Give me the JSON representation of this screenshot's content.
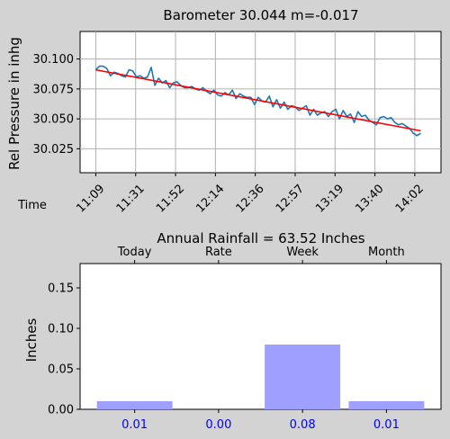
{
  "chart_data": [
    {
      "type": "line",
      "title": "Barometer 30.044 m=-0.017",
      "xlabel": "Time",
      "ylabel": "Rel Pressure in inhg",
      "ylim": [
        30.005,
        30.123
      ],
      "yticks": [
        30.025,
        30.05,
        30.075,
        30.1
      ],
      "ytick_labels": [
        "30.025",
        "30.050",
        "30.075",
        "30.100"
      ],
      "xtick_labels": [
        "11:09",
        "11:31",
        "11:52",
        "12:14",
        "12:36",
        "12:57",
        "13:19",
        "13:40",
        "14:02"
      ],
      "xtick_positions": [
        0,
        21.6,
        43.2,
        64.8,
        86.4,
        108,
        129.6,
        151.2,
        172.8
      ],
      "xlim": [
        -8.5,
        187
      ],
      "grid": true,
      "series": [
        {
          "color": "#1f77b4",
          "x": [
            0,
            2,
            4,
            6,
            8,
            10,
            12,
            14,
            16,
            18,
            20,
            22,
            24,
            26,
            28,
            30,
            32,
            34,
            36,
            38,
            40,
            42,
            44,
            46,
            48,
            50,
            52,
            54,
            56,
            58,
            60,
            62,
            64,
            66,
            68,
            70,
            72,
            74,
            76,
            78,
            80,
            82,
            84,
            86,
            88,
            90,
            92,
            94,
            96,
            98,
            100,
            102,
            104,
            106,
            108,
            110,
            112,
            114,
            116,
            118,
            120,
            122,
            124,
            126,
            128,
            130,
            132,
            134,
            136,
            138,
            140,
            142,
            144,
            146,
            148,
            150,
            152,
            154,
            156,
            158,
            160,
            162,
            164,
            166,
            168,
            170,
            172,
            174,
            176
          ],
          "y": [
            30.091,
            30.094,
            30.094,
            30.092,
            30.086,
            30.089,
            30.088,
            30.086,
            30.085,
            30.091,
            30.09,
            30.085,
            30.086,
            30.084,
            30.085,
            30.093,
            30.078,
            30.084,
            30.08,
            30.082,
            30.076,
            30.08,
            30.081,
            30.078,
            30.076,
            30.076,
            30.077,
            30.075,
            30.074,
            30.076,
            30.073,
            30.071,
            30.074,
            30.07,
            30.069,
            30.072,
            30.07,
            30.074,
            30.067,
            30.071,
            30.069,
            30.068,
            30.068,
            30.062,
            30.068,
            30.065,
            30.064,
            30.069,
            30.06,
            30.066,
            30.059,
            30.064,
            30.058,
            30.061,
            30.06,
            30.057,
            30.059,
            30.061,
            30.053,
            30.058,
            30.053,
            30.055,
            30.056,
            30.052,
            30.056,
            30.058,
            30.05,
            30.057,
            30.052,
            30.054,
            30.047,
            30.056,
            30.052,
            30.053,
            30.049,
            30.047,
            30.045,
            30.051,
            30.052,
            30.05,
            30.051,
            30.047,
            30.045,
            30.046,
            30.044,
            30.042,
            30.038,
            30.036,
            30.038
          ]
        },
        {
          "color": "#ff0000",
          "x": [
            0,
            176
          ],
          "y": [
            30.091,
            30.04
          ]
        }
      ]
    },
    {
      "type": "bar",
      "title": "Annual Rainfall = 63.52 Inches",
      "ylabel": "Inches",
      "ylim": [
        0,
        0.18
      ],
      "yticks": [
        0.0,
        0.05,
        0.1,
        0.15
      ],
      "ytick_labels": [
        "0.00",
        "0.05",
        "0.10",
        "0.15"
      ],
      "categories": [
        "Today",
        "Rate",
        "Week",
        "Month"
      ],
      "values": [
        0.01,
        0.0,
        0.08,
        0.01
      ],
      "value_labels": [
        "0.01",
        "0.00",
        "0.08",
        "0.01"
      ],
      "bar_color": "#9f9fff",
      "value_label_color": "#0000ff",
      "grid": false
    }
  ]
}
